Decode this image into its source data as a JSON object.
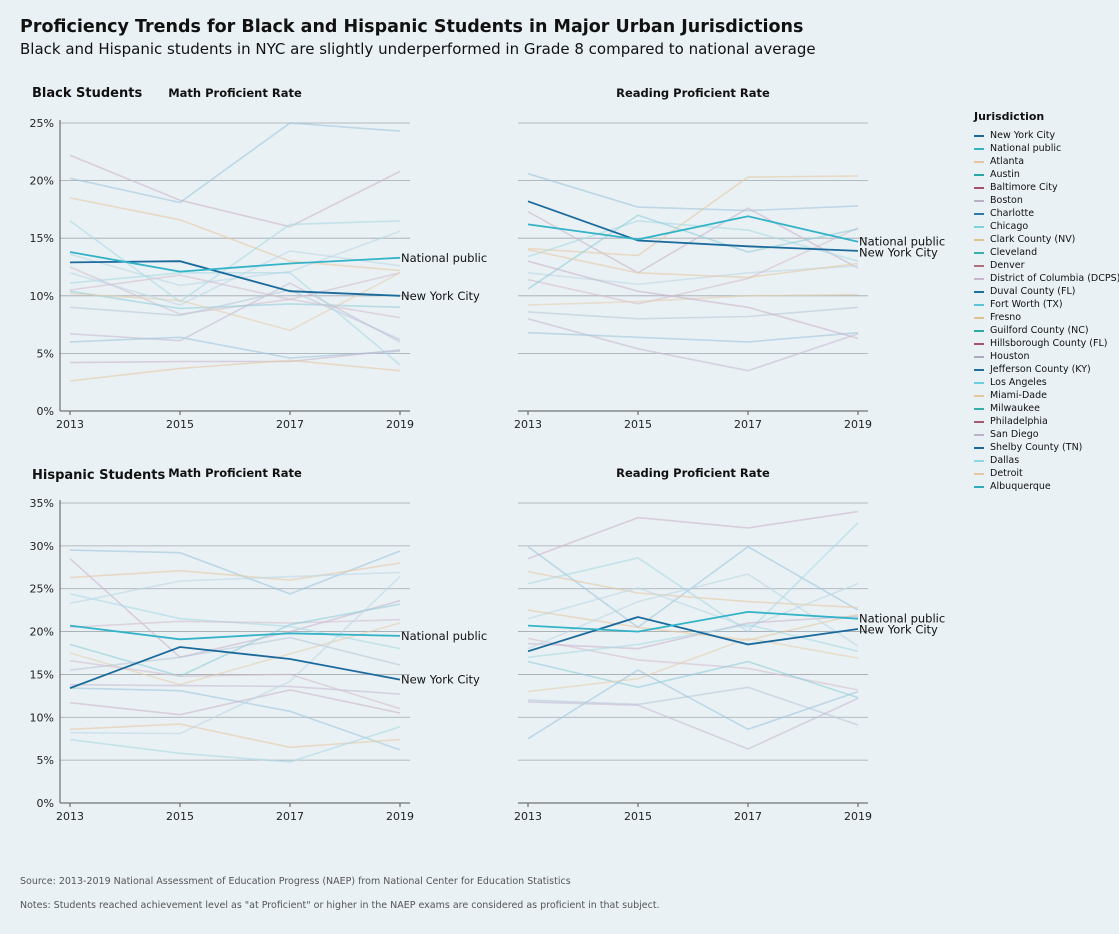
{
  "header": {
    "title": "Proficiency Trends for Black and Hispanic Students in Major Urban Jurisdictions",
    "subtitle": "Black and Hispanic students in NYC are slightly underperformed in Grade 8 compared to national average"
  },
  "rows": {
    "black": "Black Students",
    "hispanic": "Hispanic Students"
  },
  "footer": {
    "source": "Source: 2013-2019 National Assessment of Education Progress (NAEP) from National Center for Education Statistics",
    "notes": "Notes: Students reached achievement level as \"at Proficient\" or higher in the NAEP exams are considered as proficient in that subject."
  },
  "legend": {
    "title": "Jurisdiction",
    "items": [
      {
        "name": "New York City",
        "color": "#1a6a9c"
      },
      {
        "name": "National public",
        "color": "#33b3c7"
      },
      {
        "name": "Atlanta",
        "color": "#e8c4a0"
      },
      {
        "name": "Austin",
        "color": "#2aa6a6"
      },
      {
        "name": "Baltimore City",
        "color": "#a3526a"
      },
      {
        "name": "Boston",
        "color": "#b8b0c4"
      },
      {
        "name": "Charlotte",
        "color": "#2d7aa8"
      },
      {
        "name": "Chicago",
        "color": "#7fd1dc"
      },
      {
        "name": "Clark County (NV)",
        "color": "#e0c090"
      },
      {
        "name": "Cleveland",
        "color": "#3bb0a8"
      },
      {
        "name": "Denver",
        "color": "#b0707a"
      },
      {
        "name": "District of Columbia (DCPS)",
        "color": "#c9b6cc"
      },
      {
        "name": "Duval County (FL)",
        "color": "#1f6f9f"
      },
      {
        "name": "Fort Worth (TX)",
        "color": "#5cc4d6"
      },
      {
        "name": "Fresno",
        "color": "#dcc48e"
      },
      {
        "name": "Guilford County (NC)",
        "color": "#2fa8a0"
      },
      {
        "name": "Hillsborough County (FL)",
        "color": "#a4536e"
      },
      {
        "name": "Houston",
        "color": "#b3a8c4"
      },
      {
        "name": "Jefferson County (KY)",
        "color": "#226f9e"
      },
      {
        "name": "Los Angeles",
        "color": "#6ccfe0"
      },
      {
        "name": "Miami-Dade",
        "color": "#e2c79a"
      },
      {
        "name": "Milwaukee",
        "color": "#34aea6"
      },
      {
        "name": "Philadelphia",
        "color": "#a55a72"
      },
      {
        "name": "San Diego",
        "color": "#c0b2c8"
      },
      {
        "name": "Shelby County (TN)",
        "color": "#1c6a9a"
      },
      {
        "name": "Dallas",
        "color": "#8ad8e6"
      },
      {
        "name": "Detroit",
        "color": "#e4c8a2"
      },
      {
        "name": "Albuquerque",
        "color": "#30a9b8"
      }
    ]
  },
  "chart_data": [
    {
      "type": "line",
      "title": "Math Proficient Rate",
      "group": "Black Students",
      "x": [
        2013,
        2015,
        2017,
        2019
      ],
      "ylim": [
        0,
        25
      ],
      "yticks": [
        "0%",
        "5%",
        "10%",
        "15%",
        "20%",
        "25%"
      ],
      "series": [
        {
          "name": "New York City",
          "values": [
            12.9,
            13.0,
            10.4,
            10.0
          ],
          "labeled": true
        },
        {
          "name": "National public",
          "values": [
            13.8,
            12.1,
            12.8,
            13.3
          ],
          "labeled": true
        },
        {
          "values": [
            20.2,
            18.1,
            25.0,
            24.3
          ]
        },
        {
          "values": [
            22.2,
            18.3,
            16.0,
            20.8
          ]
        },
        {
          "values": [
            18.5,
            16.6,
            13.0,
            12.2
          ]
        },
        {
          "values": [
            16.5,
            9.5,
            16.2,
            16.5
          ]
        },
        {
          "values": [
            13.6,
            10.9,
            12.1,
            15.6
          ]
        },
        {
          "values": [
            12.5,
            8.4,
            9.7,
            12.0
          ]
        },
        {
          "values": [
            10.4,
            8.9,
            9.3,
            9.0
          ]
        },
        {
          "values": [
            10.2,
            9.6,
            7.0,
            12.0
          ]
        },
        {
          "values": [
            9.0,
            8.3,
            10.5,
            6.2
          ]
        },
        {
          "values": [
            6.7,
            6.1,
            11.1,
            6.0
          ]
        },
        {
          "values": [
            6.0,
            6.4,
            4.6,
            5.2
          ]
        },
        {
          "values": [
            4.2,
            4.3,
            4.3,
            5.3
          ]
        },
        {
          "values": [
            2.6,
            3.7,
            4.4,
            3.5
          ]
        },
        {
          "values": [
            11.1,
            12.0,
            12.0,
            4.0
          ]
        },
        {
          "values": [
            12.0,
            9.2,
            13.9,
            12.6
          ]
        },
        {
          "values": [
            10.5,
            11.8,
            9.7,
            8.1
          ]
        }
      ]
    },
    {
      "type": "line",
      "title": "Reading Proficient Rate",
      "group": "Black Students",
      "x": [
        2013,
        2015,
        2017,
        2019
      ],
      "ylim": [
        0,
        25
      ],
      "yticks": [
        "0%",
        "5%",
        "10%",
        "15%",
        "20%",
        "25%"
      ],
      "series": [
        {
          "name": "New York City",
          "values": [
            18.2,
            14.8,
            14.3,
            13.9
          ],
          "labeled": true
        },
        {
          "name": "National public",
          "values": [
            16.2,
            14.9,
            16.9,
            14.7
          ],
          "labeled": true
        },
        {
          "values": [
            20.6,
            17.7,
            17.4,
            17.8
          ]
        },
        {
          "values": [
            17.3,
            12.0,
            17.6,
            12.4
          ]
        },
        {
          "values": [
            14.1,
            13.5,
            20.3,
            20.4
          ]
        },
        {
          "values": [
            13.4,
            16.5,
            15.7,
            13.0
          ]
        },
        {
          "values": [
            12.0,
            11.0,
            12.0,
            12.6
          ]
        },
        {
          "values": [
            11.4,
            9.3,
            11.5,
            15.9
          ]
        },
        {
          "values": [
            10.6,
            17.0,
            13.8,
            15.8
          ]
        },
        {
          "values": [
            9.2,
            9.5,
            10.0,
            10.1
          ]
        },
        {
          "values": [
            8.6,
            8.0,
            8.2,
            9.0
          ]
        },
        {
          "values": [
            8.0,
            5.4,
            3.5,
            6.7
          ]
        },
        {
          "values": [
            6.8,
            6.4,
            6.0,
            6.8
          ]
        },
        {
          "values": [
            13.0,
            10.4,
            9.0,
            6.3
          ]
        },
        {
          "values": [
            14.0,
            12.0,
            11.6,
            12.8
          ]
        }
      ]
    },
    {
      "type": "line",
      "title": "Math Proficient Rate",
      "group": "Hispanic Students",
      "x": [
        2013,
        2015,
        2017,
        2019
      ],
      "ylim": [
        0,
        35
      ],
      "yticks": [
        "0%",
        "5%",
        "10%",
        "15%",
        "20%",
        "25%",
        "30%",
        "35%"
      ],
      "series": [
        {
          "name": "New York City",
          "values": [
            13.4,
            18.2,
            16.8,
            14.4
          ],
          "labeled": true
        },
        {
          "name": "National public",
          "values": [
            20.7,
            19.1,
            19.8,
            19.5
          ],
          "labeled": true
        },
        {
          "values": [
            29.5,
            29.2,
            24.4,
            29.4
          ]
        },
        {
          "values": [
            28.5,
            17.0,
            20.0,
            23.6
          ]
        },
        {
          "values": [
            26.3,
            27.1,
            26.0,
            28.0
          ]
        },
        {
          "values": [
            24.4,
            21.5,
            20.6,
            18.0
          ]
        },
        {
          "values": [
            23.3,
            25.9,
            26.4,
            26.9
          ]
        },
        {
          "values": [
            20.5,
            21.2,
            21.0,
            21.4
          ]
        },
        {
          "values": [
            18.5,
            14.8,
            20.8,
            23.2
          ]
        },
        {
          "values": [
            17.5,
            13.8,
            17.4,
            21.0
          ]
        },
        {
          "values": [
            15.5,
            17.0,
            19.3,
            16.1
          ]
        },
        {
          "values": [
            13.8,
            13.7,
            13.6,
            12.7
          ]
        },
        {
          "values": [
            13.4,
            13.1,
            10.7,
            6.2
          ]
        },
        {
          "values": [
            11.7,
            10.3,
            13.2,
            10.5
          ]
        },
        {
          "values": [
            8.6,
            9.2,
            6.5,
            7.4
          ]
        },
        {
          "values": [
            7.4,
            5.8,
            4.8,
            8.9
          ]
        },
        {
          "values": [
            8.2,
            8.1,
            14.2,
            26.4
          ]
        },
        {
          "values": [
            16.6,
            14.8,
            15.0,
            11.0
          ]
        }
      ]
    },
    {
      "type": "line",
      "title": "Reading Proficient Rate",
      "group": "Hispanic Students",
      "x": [
        2013,
        2015,
        2017,
        2019
      ],
      "ylim": [
        0,
        35
      ],
      "yticks": [
        "0%",
        "5%",
        "10%",
        "15%",
        "20%",
        "25%",
        "30%",
        "35%"
      ],
      "series": [
        {
          "name": "New York City",
          "values": [
            17.7,
            21.7,
            18.5,
            20.3
          ],
          "labeled": true
        },
        {
          "name": "National public",
          "values": [
            20.7,
            20.0,
            22.3,
            21.5
          ],
          "labeled": true
        },
        {
          "values": [
            29.9,
            20.5,
            29.9,
            22.5
          ]
        },
        {
          "values": [
            28.5,
            33.3,
            32.1,
            34.0
          ]
        },
        {
          "values": [
            27.0,
            24.5,
            23.5,
            22.8
          ]
        },
        {
          "values": [
            25.6,
            28.6,
            20.0,
            32.7
          ]
        },
        {
          "values": [
            21.5,
            25.1,
            20.5,
            25.6
          ]
        },
        {
          "values": [
            19.2,
            16.7,
            15.7,
            13.2
          ]
        },
        {
          "values": [
            16.5,
            13.5,
            16.5,
            12.3
          ]
        },
        {
          "values": [
            13.0,
            14.5,
            19.2,
            16.9
          ]
        },
        {
          "values": [
            12.0,
            11.5,
            13.5,
            9.1
          ]
        },
        {
          "values": [
            11.8,
            11.4,
            6.3,
            12.2
          ]
        },
        {
          "values": [
            7.5,
            15.5,
            8.6,
            13.0
          ]
        },
        {
          "values": [
            18.6,
            18.0,
            21.0,
            21.8
          ]
        },
        {
          "values": [
            22.5,
            20.5,
            19.0,
            22.0
          ]
        },
        {
          "values": [
            17.0,
            18.5,
            20.8,
            17.7
          ]
        },
        {
          "values": [
            18.0,
            23.5,
            26.7,
            18.3
          ]
        }
      ]
    }
  ]
}
